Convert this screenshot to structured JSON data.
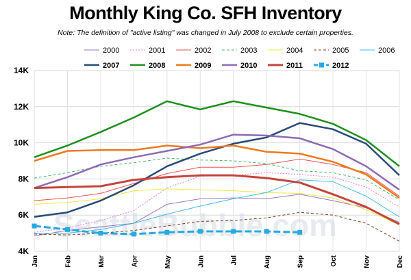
{
  "chart_data": {
    "type": "line",
    "title": "Monthly King Co. SFH Inventory",
    "note": "Note: The definition of \"active listing\" was changed in July 2008 to exclude certain properties.",
    "watermark": "SeattleBubble.com",
    "categories": [
      "Jan",
      "Feb",
      "Mar",
      "Apr",
      "May",
      "Jun",
      "Jul",
      "Aug",
      "Sep",
      "Oct",
      "Nov",
      "Dec"
    ],
    "y_ticks": [
      "4K",
      "6K",
      "8K",
      "10K",
      "12K",
      "14K"
    ],
    "y_tick_values": [
      4000,
      6000,
      8000,
      10000,
      12000,
      14000
    ],
    "ylim": [
      4000,
      14000
    ],
    "grid": true,
    "legend_placement": "top",
    "series": [
      {
        "name": "2000",
        "color": "#9a76c0",
        "style": "solid",
        "width": 1,
        "values": [
          4850,
          5150,
          5350,
          5550,
          6600,
          6900,
          6950,
          6900,
          7150,
          6800,
          6400,
          5600
        ]
      },
      {
        "name": "2001",
        "color": "#e47fc8",
        "style": "dotted",
        "width": 1,
        "values": [
          5050,
          5300,
          5700,
          6250,
          7500,
          8150,
          8200,
          8350,
          8250,
          8100,
          7550,
          6450
        ]
      },
      {
        "name": "2002",
        "color": "#e9524e",
        "style": "solid",
        "width": 1,
        "values": [
          6800,
          6950,
          7200,
          7750,
          8300,
          8650,
          8650,
          8800,
          9100,
          8800,
          8350,
          7050
        ]
      },
      {
        "name": "2003",
        "color": "#46b56b",
        "style": "dashed",
        "width": 1,
        "values": [
          8050,
          8350,
          8700,
          8900,
          9150,
          9050,
          9000,
          8850,
          8450,
          8350,
          7950,
          6850
        ]
      },
      {
        "name": "2004",
        "color": "#f0e83c",
        "style": "solid",
        "width": 1,
        "values": [
          6600,
          6700,
          6900,
          7350,
          7450,
          7400,
          7350,
          7250,
          7200,
          6950,
          6300,
          5450
        ]
      },
      {
        "name": "2005",
        "color": "#7e3b1f",
        "style": "dashed",
        "width": 1,
        "values": [
          4950,
          4900,
          5000,
          5150,
          5400,
          5650,
          5700,
          5850,
          6150,
          6000,
          5550,
          4550
        ]
      },
      {
        "name": "2006",
        "color": "#3fbce8",
        "style": "solid",
        "width": 1,
        "values": [
          5000,
          5000,
          5200,
          5550,
          6050,
          6500,
          6900,
          7250,
          7950,
          7850,
          7050,
          5900
        ]
      },
      {
        "name": "2007",
        "color": "#274b77",
        "style": "solid",
        "width": 2.5,
        "values": [
          5900,
          6150,
          6800,
          7650,
          8700,
          9400,
          9950,
          10300,
          11100,
          10750,
          9950,
          8200
        ]
      },
      {
        "name": "2008",
        "color": "#1e8f1e",
        "style": "solid",
        "width": 2.5,
        "values": [
          9200,
          9850,
          10600,
          11400,
          12300,
          11850,
          12300,
          11950,
          11600,
          11050,
          10150,
          8700
        ]
      },
      {
        "name": "2009",
        "color": "#ec7a1f",
        "style": "solid",
        "width": 2.5,
        "values": [
          9000,
          9550,
          9600,
          9600,
          9850,
          9700,
          9850,
          9500,
          9400,
          8950,
          8250,
          6950
        ]
      },
      {
        "name": "2010",
        "color": "#8c6bb4",
        "style": "solid",
        "width": 2.5,
        "values": [
          7500,
          8100,
          8800,
          9200,
          9550,
          9900,
          10450,
          10400,
          10250,
          9650,
          8700,
          7400
        ]
      },
      {
        "name": "2011",
        "color": "#c4443d",
        "style": "solid",
        "width": 3,
        "values": [
          7500,
          7550,
          7600,
          7950,
          8100,
          8200,
          8200,
          8050,
          7800,
          7150,
          6450,
          5500
        ]
      },
      {
        "name": "2012",
        "color": "#27a9e1",
        "style": "dashed-marker",
        "width": 3,
        "values": [
          5400,
          5200,
          5000,
          4950,
          5050,
          5100,
          5100,
          5100,
          5050,
          null,
          null,
          null
        ]
      }
    ]
  }
}
